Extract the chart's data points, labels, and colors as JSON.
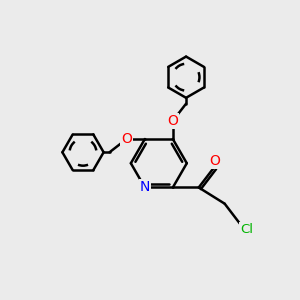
{
  "background_color": "#ebebeb",
  "atom_colors": {
    "N": "#0000ff",
    "O": "#ff0000",
    "Cl": "#00b400",
    "C": "#000000"
  },
  "bond_color": "#000000",
  "bond_width": 1.8,
  "font_size_atom": 8.5,
  "fig_size": [
    3.0,
    3.0
  ],
  "dpi": 100,
  "xlim": [
    0,
    10
  ],
  "ylim": [
    0,
    10
  ]
}
